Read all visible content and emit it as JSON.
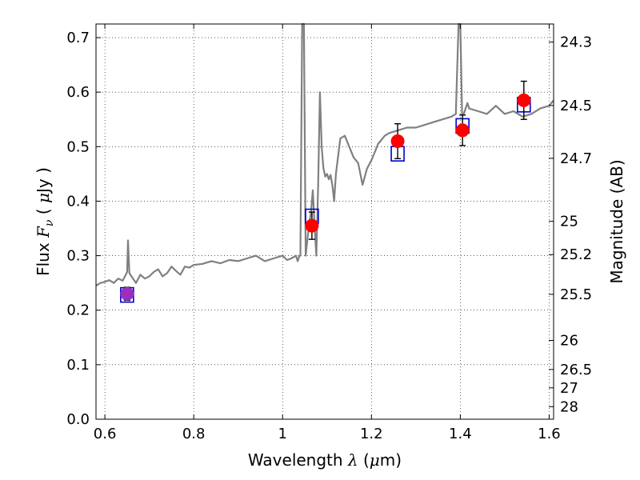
{
  "chart_data": {
    "type": "scatter",
    "title": "",
    "xlabel": "Wavelength  λ (μm)",
    "ylabel_left": "Flux  Fν  ( μJy )",
    "ylabel_right": "Magnitude (AB)",
    "xlim": [
      0.58,
      1.61
    ],
    "ylim": [
      0.0,
      0.725
    ],
    "grid": true,
    "x_ticks": [
      {
        "value": 0.6,
        "label": "0.6"
      },
      {
        "value": 0.8,
        "label": "0.8"
      },
      {
        "value": 1.0,
        "label": "1"
      },
      {
        "value": 1.2,
        "label": "1.2"
      },
      {
        "value": 1.4,
        "label": "1.4"
      },
      {
        "value": 1.6,
        "label": "1.6"
      }
    ],
    "y_ticks": [
      {
        "value": 0.0,
        "label": "0.0"
      },
      {
        "value": 0.1,
        "label": "0.1"
      },
      {
        "value": 0.2,
        "label": "0.2"
      },
      {
        "value": 0.3,
        "label": "0.3"
      },
      {
        "value": 0.4,
        "label": "0.4"
      },
      {
        "value": 0.5,
        "label": "0.5"
      },
      {
        "value": 0.6,
        "label": "0.6"
      },
      {
        "value": 0.7,
        "label": "0.7"
      }
    ],
    "right_ticks": [
      {
        "mag": 24.3,
        "label": "24.3"
      },
      {
        "mag": 24.5,
        "label": "24.5"
      },
      {
        "mag": 24.7,
        "label": "24.7"
      },
      {
        "mag": 25.0,
        "label": "25"
      },
      {
        "mag": 25.2,
        "label": "25.2"
      },
      {
        "mag": 25.5,
        "label": "25.5"
      },
      {
        "mag": 26.0,
        "label": "26"
      },
      {
        "mag": 26.5,
        "label": "26.5"
      },
      {
        "mag": 27.0,
        "label": "27"
      },
      {
        "mag": 28.0,
        "label": "28"
      }
    ],
    "spectrum": {
      "color": "#808080",
      "x": [
        0.58,
        0.59,
        0.6,
        0.61,
        0.62,
        0.63,
        0.64,
        0.645,
        0.65,
        0.652,
        0.655,
        0.66,
        0.67,
        0.68,
        0.69,
        0.7,
        0.71,
        0.72,
        0.73,
        0.74,
        0.75,
        0.76,
        0.77,
        0.78,
        0.79,
        0.8,
        0.82,
        0.84,
        0.86,
        0.88,
        0.9,
        0.92,
        0.94,
        0.96,
        0.98,
        1.0,
        1.01,
        1.02,
        1.03,
        1.034,
        1.038,
        1.04,
        1.044,
        1.048,
        1.052,
        1.056,
        1.06,
        1.064,
        1.068,
        1.072,
        1.076,
        1.08,
        1.084,
        1.088,
        1.092,
        1.096,
        1.1,
        1.104,
        1.108,
        1.112,
        1.116,
        1.12,
        1.13,
        1.14,
        1.15,
        1.16,
        1.17,
        1.18,
        1.19,
        1.2,
        1.205,
        1.21,
        1.215,
        1.22,
        1.225,
        1.23,
        1.24,
        1.26,
        1.28,
        1.3,
        1.32,
        1.34,
        1.36,
        1.38,
        1.39,
        1.396,
        1.4,
        1.404,
        1.408,
        1.412,
        1.416,
        1.42,
        1.44,
        1.46,
        1.48,
        1.5,
        1.52,
        1.54,
        1.56,
        1.58,
        1.6,
        1.61
      ],
      "y": [
        0.245,
        0.25,
        0.252,
        0.255,
        0.25,
        0.258,
        0.254,
        0.262,
        0.27,
        0.328,
        0.268,
        0.262,
        0.25,
        0.265,
        0.258,
        0.262,
        0.27,
        0.275,
        0.262,
        0.268,
        0.28,
        0.272,
        0.265,
        0.28,
        0.278,
        0.283,
        0.285,
        0.29,
        0.286,
        0.292,
        0.29,
        0.295,
        0.3,
        0.29,
        0.295,
        0.3,
        0.292,
        0.295,
        0.3,
        0.29,
        0.3,
        0.3,
        0.725,
        0.725,
        0.3,
        0.33,
        0.36,
        0.38,
        0.42,
        0.355,
        0.3,
        0.43,
        0.6,
        0.5,
        0.46,
        0.445,
        0.45,
        0.44,
        0.448,
        0.43,
        0.4,
        0.45,
        0.515,
        0.52,
        0.5,
        0.48,
        0.47,
        0.43,
        0.46,
        0.475,
        0.485,
        0.495,
        0.505,
        0.51,
        0.515,
        0.52,
        0.525,
        0.53,
        0.535,
        0.535,
        0.54,
        0.545,
        0.55,
        0.555,
        0.56,
        0.725,
        0.725,
        0.56,
        0.56,
        0.57,
        0.58,
        0.57,
        0.565,
        0.56,
        0.575,
        0.56,
        0.565,
        0.555,
        0.56,
        0.57,
        0.575,
        0.585
      ]
    },
    "photometry": [
      {
        "name": "",
        "x": 0.65,
        "y": 0.23,
        "yerr": 0.012,
        "model": 0.228,
        "color": "#ff0000"
      },
      {
        "name": "",
        "x": 1.066,
        "y": 0.355,
        "yerr": 0.025,
        "model": 0.372,
        "color": "#ff0000"
      },
      {
        "name": "",
        "x": 1.259,
        "y": 0.51,
        "yerr": 0.032,
        "model": 0.487,
        "color": "#ff0000"
      },
      {
        "name": "",
        "x": 1.405,
        "y": 0.53,
        "yerr": 0.028,
        "model": 0.538,
        "color": "#ff0000"
      },
      {
        "name": "",
        "x": 1.543,
        "y": 0.585,
        "yerr": 0.035,
        "model": 0.577,
        "color": "#ff0000"
      }
    ],
    "first_point_color": "#9a2fbf",
    "model_box_color": "#0000cc",
    "errorbar_color": "#000000"
  }
}
